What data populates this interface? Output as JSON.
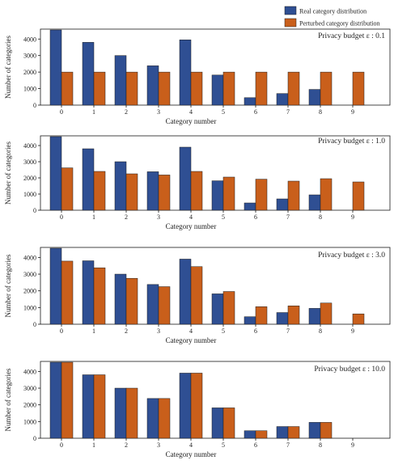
{
  "legend": {
    "items": [
      {
        "label": "Real category distribution",
        "color": "#2f4f93"
      },
      {
        "label": "Perturbed category distribution",
        "color": "#c95f1b"
      }
    ]
  },
  "colors": {
    "real": "#2f4f93",
    "perturbed": "#c95f1b",
    "edge": "#1f1f1f"
  },
  "chart_data": [
    {
      "type": "bar",
      "annotation": "Privacy budget ε : 0.1",
      "xlabel": "Category number",
      "ylabel": "Number of categories",
      "categories": [
        "0",
        "1",
        "2",
        "3",
        "4",
        "5",
        "6",
        "7",
        "8",
        "9"
      ],
      "ylim": [
        0,
        4600
      ],
      "yticks": [
        0,
        1000,
        2000,
        3000,
        4000
      ],
      "series": [
        {
          "name": "Real category distribution",
          "values": [
            4550,
            3800,
            3000,
            2380,
            3950,
            1820,
            450,
            700,
            950,
            0
          ]
        },
        {
          "name": "Perturbed category distribution",
          "values": [
            2000,
            2000,
            2000,
            2000,
            2000,
            2000,
            2000,
            2000,
            2000,
            2000
          ]
        }
      ]
    },
    {
      "type": "bar",
      "annotation": "Privacy budget ε : 1.0",
      "xlabel": "Category number",
      "ylabel": "Number of categories",
      "categories": [
        "0",
        "1",
        "2",
        "3",
        "4",
        "5",
        "6",
        "7",
        "8",
        "9"
      ],
      "ylim": [
        0,
        4600
      ],
      "yticks": [
        0,
        1000,
        2000,
        3000,
        4000
      ],
      "series": [
        {
          "name": "Real category distribution",
          "values": [
            4550,
            3800,
            3000,
            2380,
            3900,
            1820,
            450,
            700,
            950,
            0
          ]
        },
        {
          "name": "Perturbed category distribution",
          "values": [
            2620,
            2400,
            2250,
            2180,
            2400,
            2050,
            1920,
            1800,
            1950,
            1750
          ]
        }
      ]
    },
    {
      "type": "bar",
      "annotation": "Privacy budget ε : 3.0",
      "xlabel": "Category number",
      "ylabel": "Number of categories",
      "categories": [
        "0",
        "1",
        "2",
        "3",
        "4",
        "5",
        "6",
        "7",
        "8",
        "9"
      ],
      "ylim": [
        0,
        4600
      ],
      "yticks": [
        0,
        1000,
        2000,
        3000,
        4000
      ],
      "series": [
        {
          "name": "Real category distribution",
          "values": [
            4550,
            3800,
            3000,
            2380,
            3900,
            1820,
            450,
            700,
            950,
            0
          ]
        },
        {
          "name": "Perturbed category distribution",
          "values": [
            3780,
            3380,
            2750,
            2250,
            3450,
            1960,
            1050,
            1100,
            1270,
            620
          ]
        }
      ]
    },
    {
      "type": "bar",
      "annotation": "Privacy budget ε : 10.0",
      "xlabel": "Category number",
      "ylabel": "Number of categories",
      "categories": [
        "0",
        "1",
        "2",
        "3",
        "4",
        "5",
        "6",
        "7",
        "8",
        "9"
      ],
      "ylim": [
        0,
        4600
      ],
      "yticks": [
        0,
        1000,
        2000,
        3000,
        4000
      ],
      "series": [
        {
          "name": "Real category distribution",
          "values": [
            4550,
            3800,
            3000,
            2380,
            3900,
            1820,
            450,
            700,
            950,
            0
          ]
        },
        {
          "name": "Perturbed category distribution",
          "values": [
            4550,
            3800,
            3000,
            2380,
            3900,
            1820,
            450,
            700,
            950,
            0
          ]
        }
      ]
    }
  ]
}
